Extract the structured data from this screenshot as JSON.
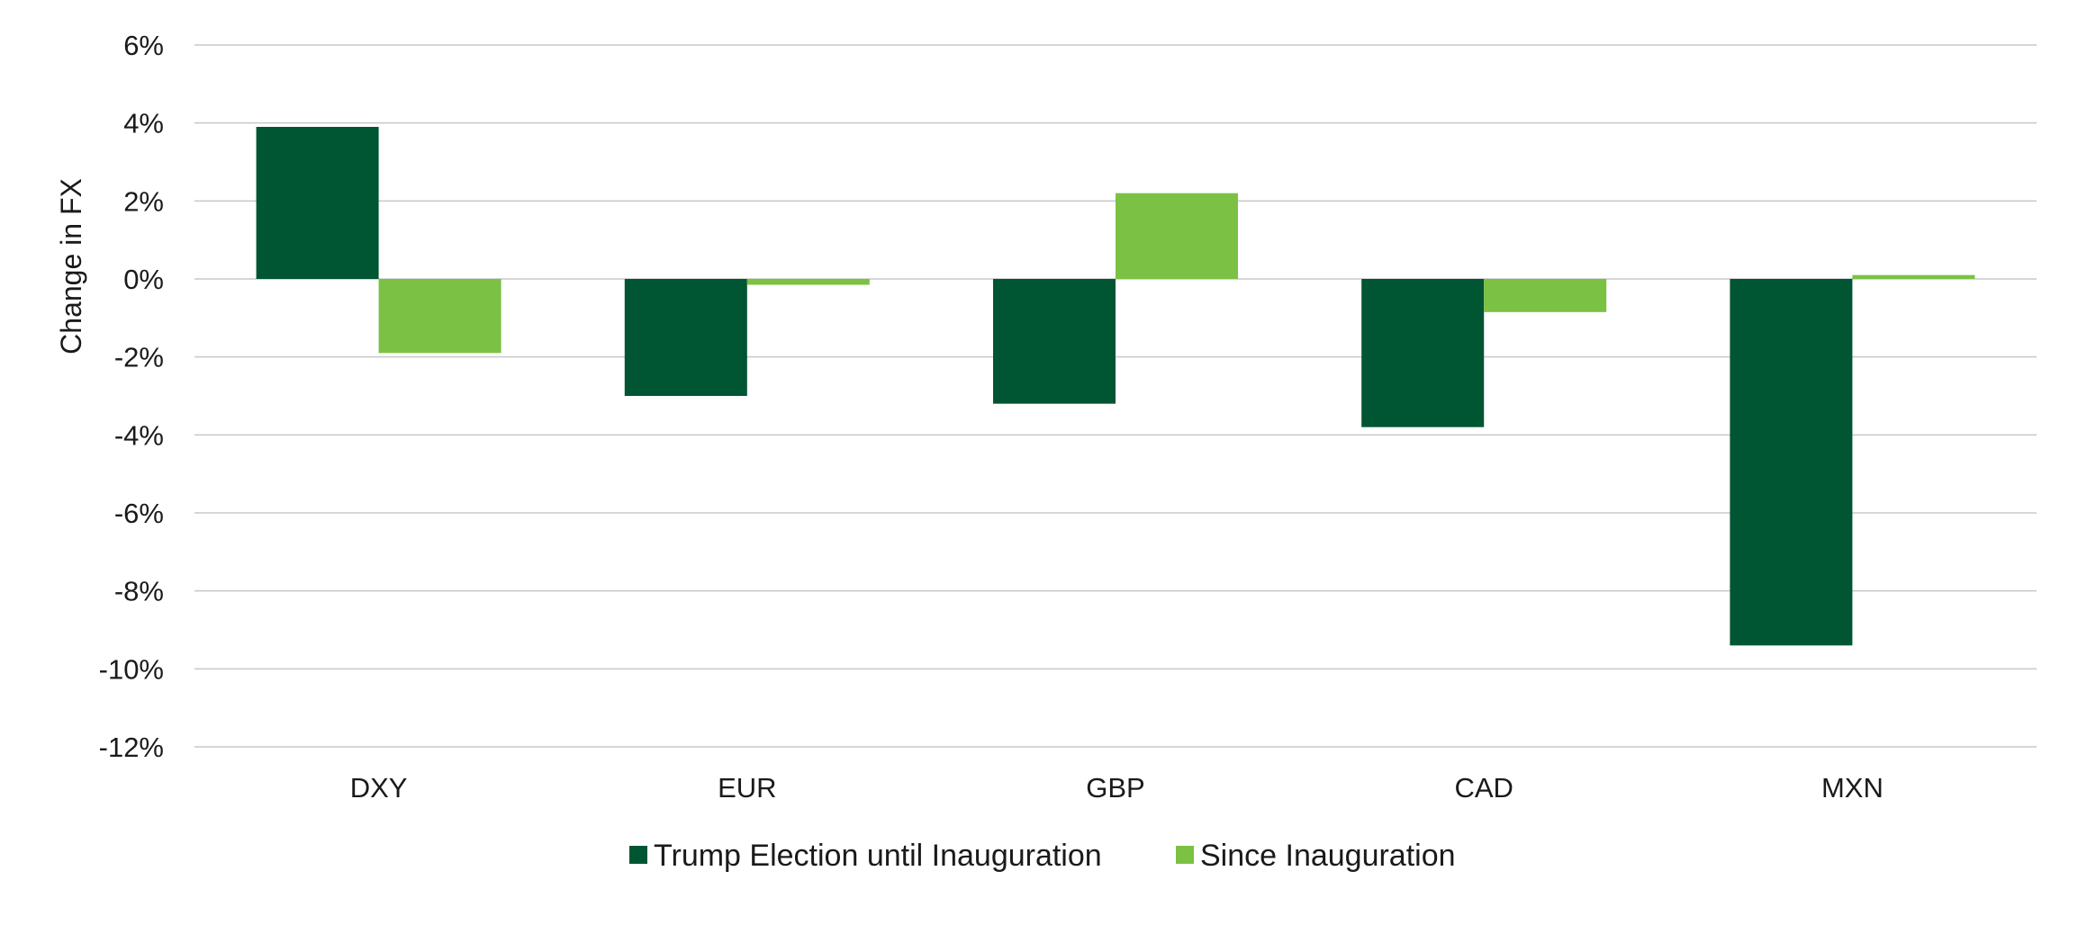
{
  "chart_data": {
    "type": "bar",
    "title": "",
    "xlabel": "",
    "ylabel": "Change in FX",
    "ylim": [
      -12,
      6
    ],
    "ytick_step": 2,
    "ytick_suffix": "%",
    "grid": true,
    "legend_position": "bottom",
    "categories": [
      "DXY",
      "EUR",
      "GBP",
      "CAD",
      "MXN"
    ],
    "series": [
      {
        "name": "Trump Election until Inauguration",
        "color": "#005533",
        "values": [
          3.9,
          -3.0,
          -3.2,
          -3.8,
          -9.4
        ]
      },
      {
        "name": "Since Inauguration",
        "color": "#7bc143",
        "values": [
          -1.9,
          -0.15,
          2.2,
          -0.85,
          0.1
        ]
      }
    ]
  }
}
